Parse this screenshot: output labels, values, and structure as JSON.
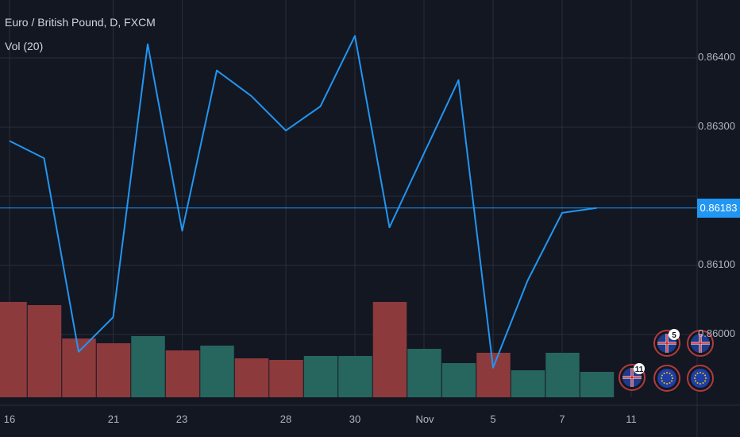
{
  "header": {
    "title": "Euro / British Pound, D, FXCM",
    "volume_label": "Vol (20)"
  },
  "price_badge": "0.86183",
  "colors": {
    "background": "#131722",
    "line": "#2196f3",
    "volume_up": "#26665f",
    "volume_down": "#8d3a3d",
    "grid": "#2a2e39",
    "axis_text": "#b2b5be"
  },
  "chart_data": {
    "type": "line",
    "title": "Euro / British Pound, D, FXCM",
    "y_ticks": [
      "0.86000",
      "0.86100",
      "0.86200",
      "0.86300",
      "0.86400"
    ],
    "ylim": [
      0.8592,
      0.8648
    ],
    "x_ticks": [
      "16",
      "21",
      "23",
      "28",
      "30",
      "Nov",
      "5",
      "7",
      "11"
    ],
    "last_price": 0.86183,
    "series": [
      {
        "values": [
          0.8628,
          0.86255,
          0.85975,
          0.86025,
          0.8642,
          0.8615,
          0.86382,
          0.86345,
          0.86295,
          0.8633,
          0.86432,
          0.86155,
          0.86262,
          0.86368,
          0.85952,
          0.86078,
          0.86176,
          0.86183
        ]
      }
    ],
    "volume": {
      "values": [
        120,
        116,
        74,
        68,
        77,
        59,
        65,
        49,
        47,
        52,
        52,
        120,
        61,
        43,
        56,
        34,
        56,
        32
      ],
      "direction": [
        "down",
        "down",
        "down",
        "down",
        "up",
        "down",
        "up",
        "down",
        "down",
        "up",
        "up",
        "down",
        "up",
        "up",
        "down",
        "up",
        "up",
        "up"
      ]
    },
    "events": [
      {
        "icon": "uk-flag-icon",
        "count": "11"
      },
      {
        "icon": "uk-flag-icon",
        "count": "5"
      },
      {
        "icon": "eu-flag-icon",
        "count": ""
      },
      {
        "icon": "uk-flag-icon",
        "count": ""
      },
      {
        "icon": "eu-flag-icon",
        "count": ""
      }
    ]
  }
}
